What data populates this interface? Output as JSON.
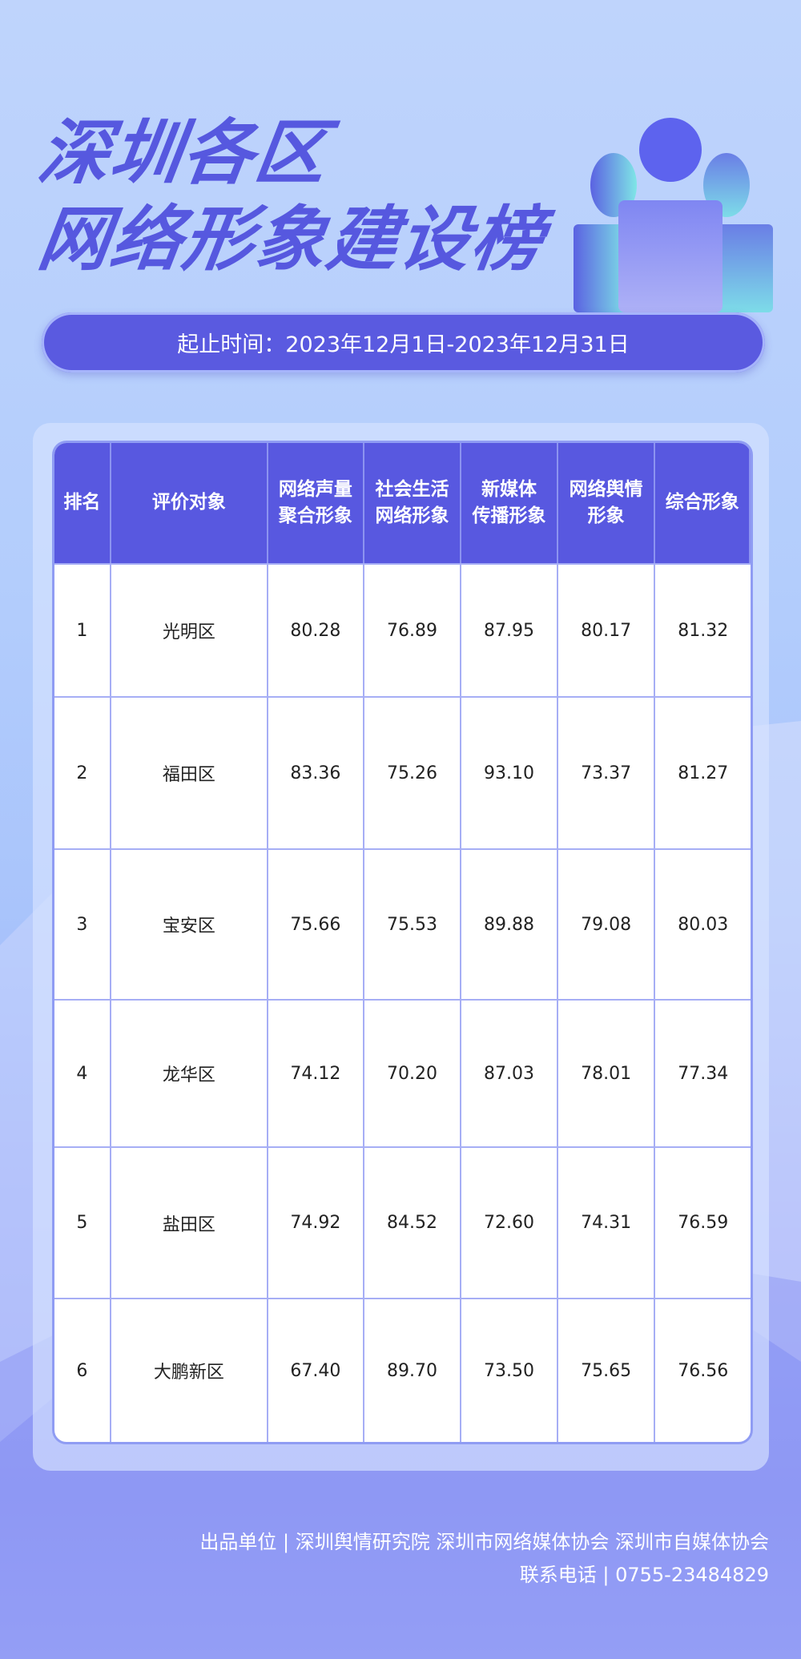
{
  "title": {
    "line1": "深圳各区",
    "line2": "网络形象建设榜"
  },
  "date_range": "起止时间：2023年12月1日-2023年12月31日",
  "table": {
    "headers": [
      "排名",
      "评价对象",
      "网络声量\n聚合形象",
      "社会生活\n网络形象",
      "新媒体\n传播形象",
      "网络舆情\n形象",
      "综合形象"
    ],
    "rows": [
      [
        "1",
        "光明区",
        "80.28",
        "76.89",
        "87.95",
        "80.17",
        "81.32"
      ],
      [
        "2",
        "福田区",
        "83.36",
        "75.26",
        "93.10",
        "73.37",
        "81.27"
      ],
      [
        "3",
        "宝安区",
        "75.66",
        "75.53",
        "89.88",
        "79.08",
        "80.03"
      ],
      [
        "4",
        "龙华区",
        "74.12",
        "70.20",
        "87.03",
        "78.01",
        "77.34"
      ],
      [
        "5",
        "盐田区",
        "74.92",
        "84.52",
        "72.60",
        "74.31",
        "76.59"
      ],
      [
        "6",
        "大鹏新区",
        "67.40",
        "89.70",
        "73.50",
        "75.65",
        "76.56"
      ]
    ]
  },
  "footer": {
    "producers": "出品单位 | 深圳舆情研究院 深圳市网络媒体协会 深圳市自媒体协会",
    "contact": "联系电话 | 0755-23484829"
  },
  "colors": {
    "accent": "#5858e0",
    "header_bg": "#5858e0",
    "border": "#a6aef5"
  },
  "icons": {
    "illustration": "people-group-icon"
  }
}
